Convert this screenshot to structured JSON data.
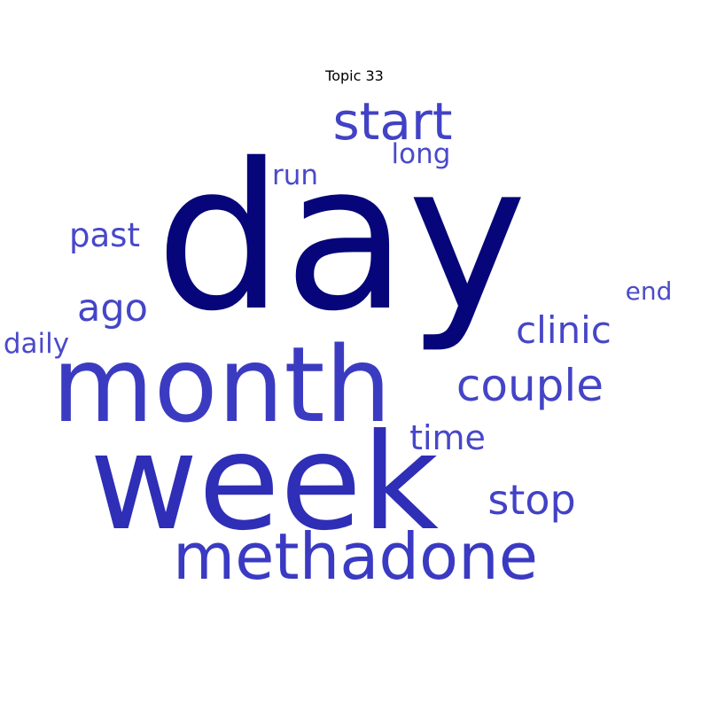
{
  "title": "Topic 33",
  "words": [
    {
      "text": "day",
      "color": "#06067a"
    },
    {
      "text": "week",
      "color": "#2e2eb7"
    },
    {
      "text": "month",
      "color": "#3b3bc2"
    },
    {
      "text": "methadone",
      "color": "#3a3ac3"
    },
    {
      "text": "start",
      "color": "#4242c6"
    },
    {
      "text": "couple",
      "color": "#4444c6"
    },
    {
      "text": "stop",
      "color": "#4242c6"
    },
    {
      "text": "clinic",
      "color": "#4646c8"
    },
    {
      "text": "time",
      "color": "#4747c9"
    },
    {
      "text": "ago",
      "color": "#4545c8"
    },
    {
      "text": "past",
      "color": "#4848c9"
    },
    {
      "text": "long",
      "color": "#4a4aca"
    },
    {
      "text": "run",
      "color": "#4a4aca"
    },
    {
      "text": "daily",
      "color": "#4a4aca"
    },
    {
      "text": "end",
      "color": "#4b4bca"
    }
  ]
}
